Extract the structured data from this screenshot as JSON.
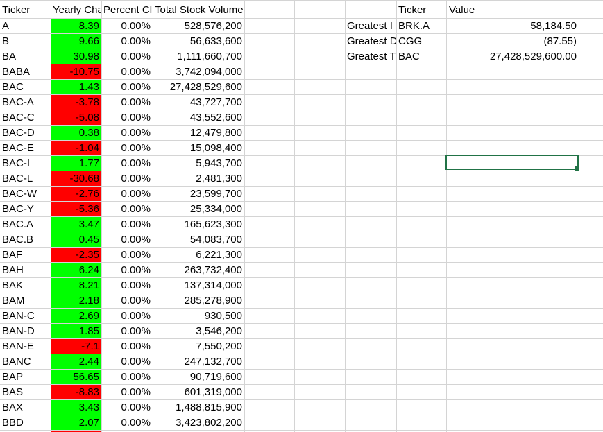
{
  "colors": {
    "positive_fill": "#00ff00",
    "negative_fill": "#ff0000",
    "selection_border": "#217346"
  },
  "headers": {
    "ticker": "Ticker",
    "yearly_change": "Yearly Cha",
    "percent_change": "Percent Cl",
    "total_volume": "Total Stock Volume"
  },
  "rows": [
    {
      "ticker": "A",
      "change": "8.39",
      "sign": "pos",
      "pct": "0.00%",
      "volume": "528,576,200"
    },
    {
      "ticker": "B",
      "change": "9.66",
      "sign": "pos",
      "pct": "0.00%",
      "volume": "56,633,600"
    },
    {
      "ticker": "BA",
      "change": "30.98",
      "sign": "pos",
      "pct": "0.00%",
      "volume": "1,111,660,700"
    },
    {
      "ticker": "BABA",
      "change": "-10.75",
      "sign": "neg",
      "pct": "0.00%",
      "volume": "3,742,094,000"
    },
    {
      "ticker": "BAC",
      "change": "1.43",
      "sign": "pos",
      "pct": "0.00%",
      "volume": "27,428,529,600"
    },
    {
      "ticker": "BAC-A",
      "change": "-3.78",
      "sign": "neg",
      "pct": "0.00%",
      "volume": "43,727,700"
    },
    {
      "ticker": "BAC-C",
      "change": "-5.08",
      "sign": "neg",
      "pct": "0.00%",
      "volume": "43,552,600"
    },
    {
      "ticker": "BAC-D",
      "change": "0.38",
      "sign": "pos",
      "pct": "0.00%",
      "volume": "12,479,800"
    },
    {
      "ticker": "BAC-E",
      "change": "-1.04",
      "sign": "neg",
      "pct": "0.00%",
      "volume": "15,098,400"
    },
    {
      "ticker": "BAC-I",
      "change": "1.77",
      "sign": "pos",
      "pct": "0.00%",
      "volume": "5,943,700"
    },
    {
      "ticker": "BAC-L",
      "change": "-30.68",
      "sign": "neg",
      "pct": "0.00%",
      "volume": "2,481,300"
    },
    {
      "ticker": "BAC-W",
      "change": "-2.76",
      "sign": "neg",
      "pct": "0.00%",
      "volume": "23,599,700"
    },
    {
      "ticker": "BAC-Y",
      "change": "-5.36",
      "sign": "neg",
      "pct": "0.00%",
      "volume": "25,334,000"
    },
    {
      "ticker": "BAC.A",
      "change": "3.47",
      "sign": "pos",
      "pct": "0.00%",
      "volume": "165,623,300"
    },
    {
      "ticker": "BAC.B",
      "change": "0.45",
      "sign": "pos",
      "pct": "0.00%",
      "volume": "54,083,700"
    },
    {
      "ticker": "BAF",
      "change": "-2.35",
      "sign": "neg",
      "pct": "0.00%",
      "volume": "6,221,300"
    },
    {
      "ticker": "BAH",
      "change": "6.24",
      "sign": "pos",
      "pct": "0.00%",
      "volume": "263,732,400"
    },
    {
      "ticker": "BAK",
      "change": "8.21",
      "sign": "pos",
      "pct": "0.00%",
      "volume": "137,314,000"
    },
    {
      "ticker": "BAM",
      "change": "2.18",
      "sign": "pos",
      "pct": "0.00%",
      "volume": "285,278,900"
    },
    {
      "ticker": "BAN-C",
      "change": "2.69",
      "sign": "pos",
      "pct": "0.00%",
      "volume": "930,500"
    },
    {
      "ticker": "BAN-D",
      "change": "1.85",
      "sign": "pos",
      "pct": "0.00%",
      "volume": "3,546,200"
    },
    {
      "ticker": "BAN-E",
      "change": "-7.1",
      "sign": "neg",
      "pct": "0.00%",
      "volume": "7,550,200"
    },
    {
      "ticker": "BANC",
      "change": "2.44",
      "sign": "pos",
      "pct": "0.00%",
      "volume": "247,132,700"
    },
    {
      "ticker": "BAP",
      "change": "56.65",
      "sign": "pos",
      "pct": "0.00%",
      "volume": "90,719,600"
    },
    {
      "ticker": "BAS",
      "change": "-8.83",
      "sign": "neg",
      "pct": "0.00%",
      "volume": "601,319,000"
    },
    {
      "ticker": "BAX",
      "change": "3.43",
      "sign": "pos",
      "pct": "0.00%",
      "volume": "1,488,815,900"
    },
    {
      "ticker": "BBD",
      "change": "2.07",
      "sign": "pos",
      "pct": "0.00%",
      "volume": "3,423,802,200"
    },
    {
      "ticker": "",
      "change": "",
      "sign": "neg",
      "pct": "",
      "volume": ""
    }
  ],
  "summary": {
    "header_ticker": "Ticker",
    "header_value": "Value",
    "rows": [
      {
        "label": "Greatest I",
        "ticker": "BRK.A",
        "value": "58,184.50"
      },
      {
        "label": "Greatest D",
        "ticker": "CGG",
        "value": "(87.55)"
      },
      {
        "label": "Greatest T",
        "ticker": "BAC",
        "value": "27,428,529,600.00"
      }
    ]
  }
}
